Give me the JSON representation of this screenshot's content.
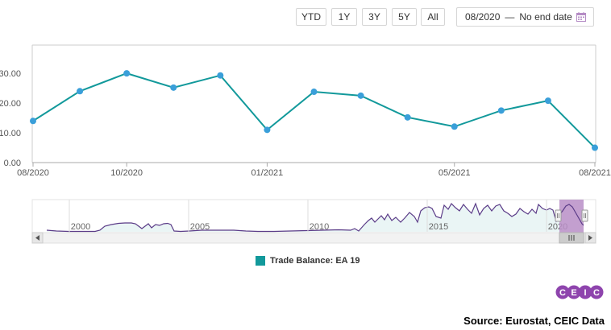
{
  "range_buttons": [
    "YTD",
    "1Y",
    "3Y",
    "5Y",
    "All"
  ],
  "date_range": {
    "start": "08/2020",
    "separator": "—",
    "end": "No end date",
    "icon": "calendar-icon"
  },
  "colors": {
    "series": "#12999b",
    "point": "#3a9fd9",
    "navigator_line": "#5b3c88",
    "navigator_selection": "#b98ec7",
    "brand": "#8e44ad"
  },
  "chart_data": {
    "type": "line",
    "x": [
      "08/2020",
      "09/2020",
      "10/2020",
      "11/2020",
      "12/2020",
      "01/2021",
      "02/2021",
      "03/2021",
      "04/2021",
      "05/2021",
      "06/2021",
      "07/2021",
      "08/2021"
    ],
    "series": [
      {
        "name": "Trade Balance: EA 19",
        "values": [
          14.0,
          24.0,
          30.0,
          25.2,
          29.3,
          11.0,
          23.8,
          22.5,
          15.2,
          12.1,
          17.5,
          20.8,
          5.0
        ]
      }
    ],
    "x_tick_labels": [
      "08/2020",
      "10/2020",
      "01/2021",
      "05/2021",
      "08/2021"
    ],
    "y_tick_labels": [
      "0.00",
      "10.00",
      "20.00",
      "30.00"
    ],
    "ylim": [
      0,
      39.5
    ],
    "grid": false,
    "legend": "bottom-center",
    "navigator": {
      "year_labels": [
        "2000",
        "2005",
        "2010",
        "2015",
        "2020"
      ]
    }
  },
  "legend": {
    "label": "Trade Balance: EA 19"
  },
  "logo": {
    "text": "CEIC",
    "letters": [
      "C",
      "E",
      "I",
      "C"
    ]
  },
  "source": "Source: Eurostat, CEIC Data"
}
